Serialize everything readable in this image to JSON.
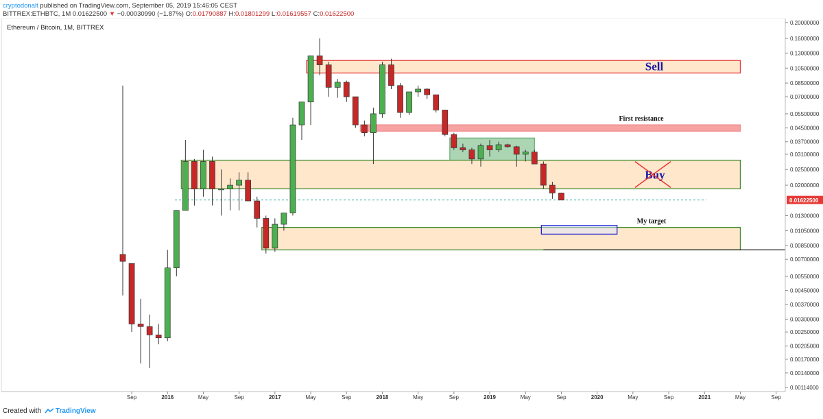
{
  "header": {
    "author": "cryptodonalt",
    "published_text": "published on TradingView.com, September 05, 2019 15:46:05 CEST",
    "symbol": "BITTREX:ETHBTC, 1M",
    "last": "0.01622500",
    "change_arrow": "▼",
    "change": "−0.00030990 (−1.87%)",
    "o_label": "O:",
    "o_value": "0.01790887",
    "h_label": "H:",
    "h_value": "0.01801299",
    "l_label": "L:",
    "l_value": "0.01619557",
    "c_label": "C:",
    "c_value": "0.01622500"
  },
  "footer": {
    "created_with": "Created with",
    "brand": "TradingView"
  },
  "colors": {
    "up": "#4caf50",
    "down": "#c62828",
    "price_tag": "#e53935",
    "accent": "#2196f3"
  },
  "chart_data": {
    "type": "candlestick",
    "title": "Ethereum / Bitcoin, 1M, BITTREX",
    "log_scale": true,
    "ylim": [
      0.00114,
      0.2
    ],
    "last_price": "0.01622500",
    "y_ticks": [
      "0.20000000",
      "0.16000000",
      "0.13000000",
      "0.10500000",
      "0.08500000",
      "0.07000000",
      "0.05500000",
      "0.04500000",
      "0.03700000",
      "0.03100000",
      "0.02500000",
      "0.02000000",
      "0.01300000",
      "0.01050000",
      "0.00850000",
      "0.00700000",
      "0.00550000",
      "0.00450000",
      "0.00370000",
      "0.00300000",
      "0.00250000",
      "0.00205000",
      "0.00170000",
      "0.00140000",
      "0.00114000"
    ],
    "x_ticks": [
      "Sep",
      "2016",
      "May",
      "Sep",
      "2017",
      "May",
      "Sep",
      "2018",
      "May",
      "Sep",
      "2019",
      "May",
      "Sep",
      "2020",
      "May",
      "Sep",
      "2021",
      "May",
      "Sep"
    ],
    "candles": [
      {
        "date": "2015-08",
        "o": 0.0075,
        "h": 0.082,
        "l": 0.0042,
        "c": 0.0068
      },
      {
        "date": "2015-09",
        "o": 0.0066,
        "h": 0.0066,
        "l": 0.0025,
        "c": 0.0028
      },
      {
        "date": "2015-10",
        "o": 0.0028,
        "h": 0.004,
        "l": 0.0016,
        "c": 0.0027
      },
      {
        "date": "2015-11",
        "o": 0.0027,
        "h": 0.0032,
        "l": 0.0015,
        "c": 0.0024
      },
      {
        "date": "2015-12",
        "o": 0.0024,
        "h": 0.0028,
        "l": 0.0021,
        "c": 0.0023
      },
      {
        "date": "2016-01",
        "o": 0.0023,
        "h": 0.008,
        "l": 0.0022,
        "c": 0.0062
      },
      {
        "date": "2016-02",
        "o": 0.0062,
        "h": 0.014,
        "l": 0.0055,
        "c": 0.014
      },
      {
        "date": "2016-03",
        "o": 0.014,
        "h": 0.038,
        "l": 0.014,
        "c": 0.028
      },
      {
        "date": "2016-04",
        "o": 0.028,
        "h": 0.029,
        "l": 0.015,
        "c": 0.019
      },
      {
        "date": "2016-05",
        "o": 0.019,
        "h": 0.033,
        "l": 0.017,
        "c": 0.028
      },
      {
        "date": "2016-06",
        "o": 0.028,
        "h": 0.03,
        "l": 0.015,
        "c": 0.019
      },
      {
        "date": "2016-07",
        "o": 0.019,
        "h": 0.025,
        "l": 0.013,
        "c": 0.019
      },
      {
        "date": "2016-08",
        "o": 0.019,
        "h": 0.022,
        "l": 0.014,
        "c": 0.02
      },
      {
        "date": "2016-09",
        "o": 0.02,
        "h": 0.024,
        "l": 0.014,
        "c": 0.0215
      },
      {
        "date": "2016-10",
        "o": 0.0215,
        "h": 0.024,
        "l": 0.016,
        "c": 0.016
      },
      {
        "date": "2016-11",
        "o": 0.016,
        "h": 0.017,
        "l": 0.011,
        "c": 0.0125
      },
      {
        "date": "2016-12",
        "o": 0.0125,
        "h": 0.013,
        "l": 0.0076,
        "c": 0.0082
      },
      {
        "date": "2017-01",
        "o": 0.0082,
        "h": 0.0125,
        "l": 0.0078,
        "c": 0.0115
      },
      {
        "date": "2017-02",
        "o": 0.0115,
        "h": 0.0135,
        "l": 0.0105,
        "c": 0.0135
      },
      {
        "date": "2017-03",
        "o": 0.0135,
        "h": 0.052,
        "l": 0.013,
        "c": 0.047
      },
      {
        "date": "2017-04",
        "o": 0.047,
        "h": 0.065,
        "l": 0.038,
        "c": 0.065
      },
      {
        "date": "2017-05",
        "o": 0.065,
        "h": 0.125,
        "l": 0.047,
        "c": 0.125
      },
      {
        "date": "2017-06",
        "o": 0.125,
        "h": 0.16,
        "l": 0.095,
        "c": 0.11
      },
      {
        "date": "2017-07",
        "o": 0.11,
        "h": 0.115,
        "l": 0.07,
        "c": 0.08
      },
      {
        "date": "2017-08",
        "o": 0.08,
        "h": 0.09,
        "l": 0.069,
        "c": 0.086
      },
      {
        "date": "2017-09",
        "o": 0.086,
        "h": 0.088,
        "l": 0.065,
        "c": 0.07
      },
      {
        "date": "2017-10",
        "o": 0.07,
        "h": 0.07,
        "l": 0.045,
        "c": 0.047
      },
      {
        "date": "2017-11",
        "o": 0.047,
        "h": 0.05,
        "l": 0.04,
        "c": 0.042
      },
      {
        "date": "2017-12",
        "o": 0.042,
        "h": 0.06,
        "l": 0.027,
        "c": 0.055
      },
      {
        "date": "2018-01",
        "o": 0.055,
        "h": 0.115,
        "l": 0.052,
        "c": 0.11
      },
      {
        "date": "2018-02",
        "o": 0.11,
        "h": 0.12,
        "l": 0.078,
        "c": 0.082
      },
      {
        "date": "2018-03",
        "o": 0.082,
        "h": 0.085,
        "l": 0.052,
        "c": 0.056
      },
      {
        "date": "2018-04",
        "o": 0.056,
        "h": 0.075,
        "l": 0.054,
        "c": 0.075
      },
      {
        "date": "2018-05",
        "o": 0.075,
        "h": 0.082,
        "l": 0.07,
        "c": 0.078
      },
      {
        "date": "2018-06",
        "o": 0.078,
        "h": 0.079,
        "l": 0.068,
        "c": 0.072
      },
      {
        "date": "2018-07",
        "o": 0.072,
        "h": 0.072,
        "l": 0.056,
        "c": 0.058
      },
      {
        "date": "2018-08",
        "o": 0.058,
        "h": 0.058,
        "l": 0.04,
        "c": 0.041
      },
      {
        "date": "2018-09",
        "o": 0.041,
        "h": 0.042,
        "l": 0.033,
        "c": 0.034
      },
      {
        "date": "2018-10",
        "o": 0.034,
        "h": 0.036,
        "l": 0.032,
        "c": 0.033
      },
      {
        "date": "2018-11",
        "o": 0.033,
        "h": 0.034,
        "l": 0.027,
        "c": 0.029
      },
      {
        "date": "2018-12",
        "o": 0.029,
        "h": 0.036,
        "l": 0.026,
        "c": 0.035
      },
      {
        "date": "2019-01",
        "o": 0.035,
        "h": 0.038,
        "l": 0.03,
        "c": 0.033
      },
      {
        "date": "2019-02",
        "o": 0.033,
        "h": 0.037,
        "l": 0.032,
        "c": 0.0355
      },
      {
        "date": "2019-03",
        "o": 0.0355,
        "h": 0.036,
        "l": 0.034,
        "c": 0.0345
      },
      {
        "date": "2019-04",
        "o": 0.0345,
        "h": 0.035,
        "l": 0.026,
        "c": 0.031
      },
      {
        "date": "2019-05",
        "o": 0.031,
        "h": 0.033,
        "l": 0.028,
        "c": 0.032
      },
      {
        "date": "2019-06",
        "o": 0.032,
        "h": 0.033,
        "l": 0.027,
        "c": 0.027
      },
      {
        "date": "2019-07",
        "o": 0.027,
        "h": 0.028,
        "l": 0.019,
        "c": 0.02
      },
      {
        "date": "2019-08",
        "o": 0.02,
        "h": 0.021,
        "l": 0.0165,
        "c": 0.0179
      },
      {
        "date": "2019-09",
        "o": 0.0179,
        "h": 0.018,
        "l": 0.0162,
        "c": 0.0162
      }
    ],
    "zones": [
      {
        "label": "Sell",
        "type": "sell",
        "from": "2017-05",
        "to": "2021-05",
        "low": 0.098,
        "high": 0.117
      },
      {
        "label": "First resistance",
        "type": "resistance",
        "from": "2017-11",
        "to": "2021-05",
        "low": 0.043,
        "high": 0.047
      },
      {
        "label": "",
        "type": "consolidation",
        "from": "2018-09",
        "to": "2019-06",
        "low": 0.0265,
        "high": 0.039
      },
      {
        "label": "Buy",
        "type": "buy",
        "from": "2016-03",
        "to": "2021-05",
        "low": 0.019,
        "high": 0.0285,
        "crossed_out": true
      },
      {
        "label": "My target",
        "type": "target",
        "from": "2016-12",
        "to": "2021-05",
        "low": 0.008,
        "high": 0.011
      }
    ],
    "target_box": {
      "from": "2019-07",
      "to": "2020-03",
      "low": 0.01,
      "high": 0.0113
    },
    "support_line": {
      "from": "2019-07",
      "value": 0.008
    },
    "last_price_line": 0.016225
  }
}
